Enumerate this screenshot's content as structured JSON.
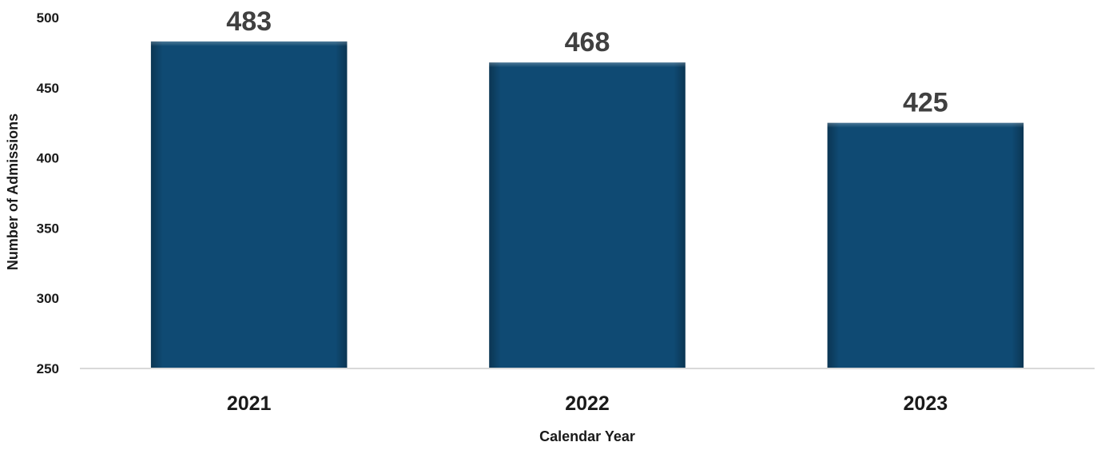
{
  "chart_data": {
    "type": "bar",
    "title": "",
    "xlabel": "Calendar Year",
    "ylabel": "Number of Admissions",
    "categories": [
      "2021",
      "2022",
      "2023"
    ],
    "values": [
      483,
      468,
      425
    ],
    "ylim": [
      250,
      500
    ],
    "yticks": [
      250,
      300,
      350,
      400,
      450,
      500
    ],
    "grid": false,
    "legend": "none",
    "bar_color": "#0f4a73",
    "data_labels": [
      "483",
      "468",
      "425"
    ]
  }
}
